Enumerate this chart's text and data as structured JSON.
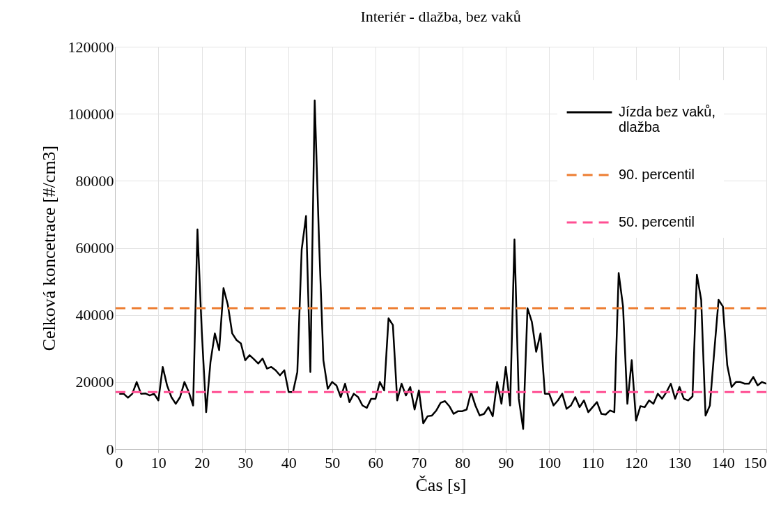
{
  "chart_data": {
    "type": "line",
    "title": "Interiér - dlažba, bez vaků",
    "xlabel": "Čas [s]",
    "ylabel": "Celková koncetrace [#/cm3]",
    "x": [
      1,
      2,
      3,
      4,
      5,
      6,
      7,
      8,
      9,
      10,
      11,
      12,
      13,
      14,
      15,
      16,
      17,
      18,
      19,
      20,
      21,
      22,
      23,
      24,
      25,
      26,
      27,
      28,
      29,
      30,
      31,
      32,
      33,
      34,
      35,
      36,
      37,
      38,
      39,
      40,
      41,
      42,
      43,
      44,
      45,
      46,
      47,
      48,
      49,
      50,
      51,
      52,
      53,
      54,
      55,
      56,
      57,
      58,
      59,
      60,
      61,
      62,
      63,
      64,
      65,
      66,
      67,
      68,
      69,
      70,
      71,
      72,
      73,
      74,
      75,
      76,
      77,
      78,
      79,
      80,
      81,
      82,
      83,
      84,
      85,
      86,
      87,
      88,
      89,
      90,
      91,
      92,
      93,
      94,
      95,
      96,
      97,
      98,
      99,
      100,
      101,
      102,
      103,
      104,
      105,
      106,
      107,
      108,
      109,
      110,
      111,
      112,
      113,
      114,
      115,
      116,
      117,
      118,
      119,
      120,
      121,
      122,
      123,
      124,
      125,
      126,
      127,
      128,
      129,
      130,
      131,
      132,
      133,
      134,
      135,
      136,
      137,
      138,
      139,
      140,
      141,
      142,
      143,
      144,
      145,
      146,
      147,
      148,
      149,
      150
    ],
    "series": [
      {
        "name": "Jízda bez vaků, dlažba",
        "color": "#000000",
        "values": [
          16500,
          16500,
          15300,
          16500,
          20000,
          16500,
          16600,
          16000,
          16500,
          14500,
          24500,
          19000,
          15500,
          13500,
          15500,
          20000,
          17000,
          13000,
          65500,
          35000,
          11000,
          26000,
          34500,
          29500,
          48000,
          43000,
          34500,
          32500,
          31500,
          26500,
          28000,
          26800,
          25500,
          27000,
          24000,
          24500,
          23500,
          22000,
          23500,
          17000,
          17000,
          23000,
          59500,
          69500,
          23000,
          104000,
          62000,
          26500,
          18000,
          20000,
          19000,
          15500,
          19500,
          14000,
          16500,
          15500,
          13000,
          12300,
          15000,
          15000,
          20000,
          17500,
          39000,
          37000,
          14500,
          19500,
          16000,
          18500,
          11800,
          17500,
          7700,
          9800,
          10000,
          11500,
          13800,
          14300,
          12800,
          10500,
          11300,
          11300,
          11800,
          17000,
          13000,
          10000,
          10500,
          12500,
          9800,
          20000,
          13500,
          24500,
          13000,
          62500,
          15000,
          6000,
          42000,
          38000,
          29000,
          34500,
          16500,
          16500,
          13000,
          14500,
          16500,
          12000,
          13000,
          15500,
          12500,
          14500,
          11000,
          12500,
          14000,
          10500,
          10300,
          11500,
          11000,
          52500,
          42500,
          13500,
          26500,
          8500,
          12800,
          12500,
          14500,
          13500,
          16500,
          15000,
          17000,
          19500,
          15000,
          18500,
          15000,
          14500,
          15700,
          52000,
          44500,
          10000,
          13000,
          29000,
          44500,
          42500,
          25000,
          18500,
          20000,
          20000,
          19500,
          19500,
          21500,
          19000,
          20000,
          19500
        ]
      }
    ],
    "ref_lines": [
      {
        "axis": "y",
        "value": 42000,
        "label": "90. percentil",
        "color": "#ed7d31",
        "line_style": "dashed"
      },
      {
        "axis": "y",
        "value": 17000,
        "label": "50. percentil",
        "color": "#ff4f93",
        "line_style": "dashed"
      }
    ],
    "xlim": [
      0,
      150
    ],
    "xticks": [
      0,
      10,
      20,
      30,
      40,
      50,
      60,
      70,
      80,
      90,
      100,
      110,
      120,
      130,
      140,
      150
    ],
    "ylim": [
      0,
      120000
    ],
    "yticks": [
      0,
      20000,
      40000,
      60000,
      80000,
      100000,
      120000
    ],
    "grid": true,
    "legend": "top right",
    "line_style": "solid",
    "marker": "none"
  }
}
